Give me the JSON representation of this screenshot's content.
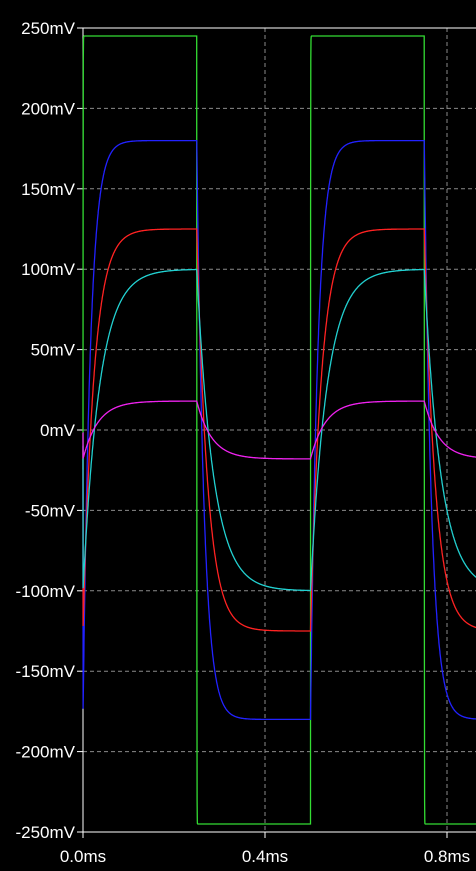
{
  "chart_data": {
    "type": "line",
    "title": "",
    "xlabel": "",
    "ylabel": "",
    "xlim": [
      0.0,
      0.9
    ],
    "ylim": [
      -250,
      250
    ],
    "grid": true,
    "x_unit": "ms",
    "y_unit": "mV",
    "x_ticks": [
      {
        "value": 0.0,
        "label": "0.0ms"
      },
      {
        "value": 0.4,
        "label": "0.4ms"
      },
      {
        "value": 0.8,
        "label": "0.8ms"
      }
    ],
    "y_ticks": [
      {
        "value": 250,
        "label": "250mV"
      },
      {
        "value": 200,
        "label": "200mV"
      },
      {
        "value": 150,
        "label": "150mV"
      },
      {
        "value": 100,
        "label": "100mV"
      },
      {
        "value": 50,
        "label": "50mV"
      },
      {
        "value": 0,
        "label": "0mV"
      },
      {
        "value": -50,
        "label": "-50mV"
      },
      {
        "value": -100,
        "label": "-100mV"
      },
      {
        "value": -150,
        "label": "-150mV"
      },
      {
        "value": -200,
        "label": "-200mV"
      },
      {
        "value": -250,
        "label": "-250mV"
      }
    ],
    "waveform": {
      "period_ms": 0.5,
      "first_edge_ms": 0.0,
      "half_period_ms": 0.25
    },
    "series": [
      {
        "color": "#33dd33",
        "amplitude_mv": 245,
        "time_constant_ms": 0.0002
      },
      {
        "color": "#2222ff",
        "amplitude_mv": 180,
        "time_constant_ms": 0.016
      },
      {
        "color": "#ff2222",
        "amplitude_mv": 125,
        "time_constant_ms": 0.024
      },
      {
        "color": "#22d0d0",
        "amplitude_mv": 100,
        "time_constant_ms": 0.036
      },
      {
        "color": "#ee22ee",
        "amplitude_mv": 18,
        "time_constant_ms": 0.033
      }
    ]
  }
}
